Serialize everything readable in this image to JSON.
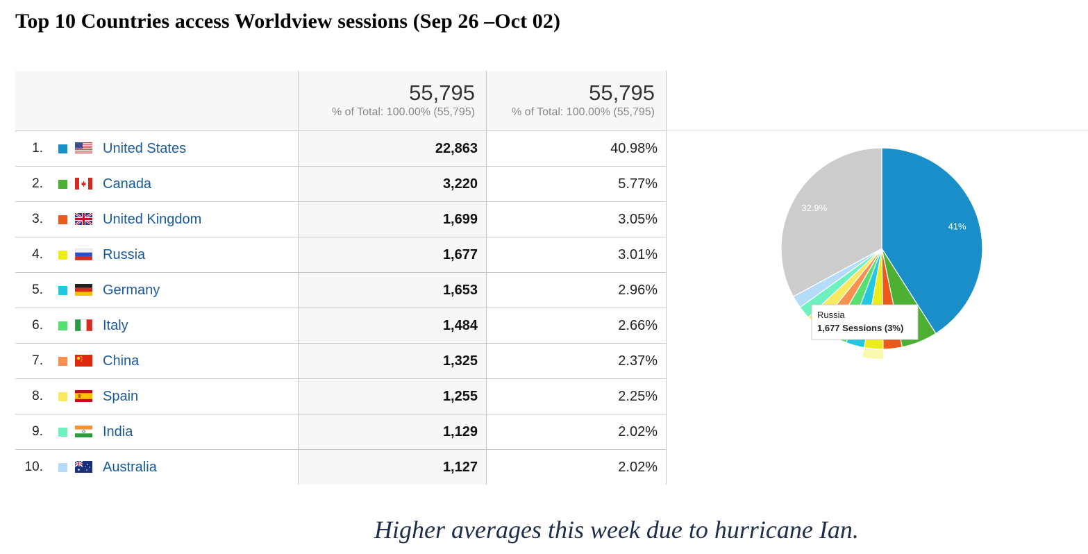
{
  "title": "Top 10 Countries access Worldview sessions (Sep 26 –Oct 02)",
  "header": {
    "col2_total": "55,795",
    "col2_sub": "% of Total: 100.00% (55,795)",
    "col3_total": "55,795",
    "col3_sub": "% of Total: 100.00% (55,795)"
  },
  "rows": [
    {
      "rank": "1.",
      "country": "United States",
      "sessions": "22,863",
      "percent": "40.98%",
      "color": "#1a8ec8",
      "flag": "us-flag-icon"
    },
    {
      "rank": "2.",
      "country": "Canada",
      "sessions": "3,220",
      "percent": "5.77%",
      "color": "#4db033",
      "flag": "canada-flag-icon"
    },
    {
      "rank": "3.",
      "country": "United Kingdom",
      "sessions": "1,699",
      "percent": "3.05%",
      "color": "#ea5a1c",
      "flag": "uk-flag-icon"
    },
    {
      "rank": "4.",
      "country": "Russia",
      "sessions": "1,677",
      "percent": "3.01%",
      "color": "#ecec1a",
      "flag": "russia-flag-icon"
    },
    {
      "rank": "5.",
      "country": "Germany",
      "sessions": "1,653",
      "percent": "2.96%",
      "color": "#22c8e0",
      "flag": "germany-flag-icon"
    },
    {
      "rank": "6.",
      "country": "Italy",
      "sessions": "1,484",
      "percent": "2.66%",
      "color": "#56e070",
      "flag": "italy-flag-icon"
    },
    {
      "rank": "7.",
      "country": "China",
      "sessions": "1,325",
      "percent": "2.37%",
      "color": "#f89050",
      "flag": "china-flag-icon"
    },
    {
      "rank": "8.",
      "country": "Spain",
      "sessions": "1,255",
      "percent": "2.25%",
      "color": "#f8ea60",
      "flag": "spain-flag-icon"
    },
    {
      "rank": "9.",
      "country": "India",
      "sessions": "1,129",
      "percent": "2.02%",
      "color": "#6ef0c0",
      "flag": "india-flag-icon"
    },
    {
      "rank": "10.",
      "country": "Australia",
      "sessions": "1,127",
      "percent": "2.02%",
      "color": "#b4dcf8",
      "flag": "australia-flag-icon"
    }
  ],
  "chart_data": {
    "type": "pie",
    "slices": [
      {
        "name": "United States",
        "value": 22863,
        "color": "#1a8ec8"
      },
      {
        "name": "Canada",
        "value": 3220,
        "color": "#4db033"
      },
      {
        "name": "United Kingdom",
        "value": 1699,
        "color": "#ea5a1c"
      },
      {
        "name": "Russia",
        "value": 1677,
        "color": "#ecec1a"
      },
      {
        "name": "Germany",
        "value": 1653,
        "color": "#22c8e0"
      },
      {
        "name": "Italy",
        "value": 1484,
        "color": "#56e070"
      },
      {
        "name": "China",
        "value": 1325,
        "color": "#f89050"
      },
      {
        "name": "Spain",
        "value": 1255,
        "color": "#f8ea60"
      },
      {
        "name": "India",
        "value": 1129,
        "color": "#6ef0c0"
      },
      {
        "name": "Australia",
        "value": 1127,
        "color": "#b4dcf8"
      },
      {
        "name": "Other",
        "value": 18363,
        "color": "#cccccc"
      }
    ],
    "slice_labels": [
      {
        "slice": "United States",
        "text": "41%"
      },
      {
        "slice": "Other",
        "text": "32.9%"
      }
    ],
    "highlighted_slice": "Russia",
    "tooltip": {
      "name": "Russia",
      "value_text": "1,677 Sessions (3%)"
    }
  },
  "note": "Higher averages this week due to hurricane Ian."
}
